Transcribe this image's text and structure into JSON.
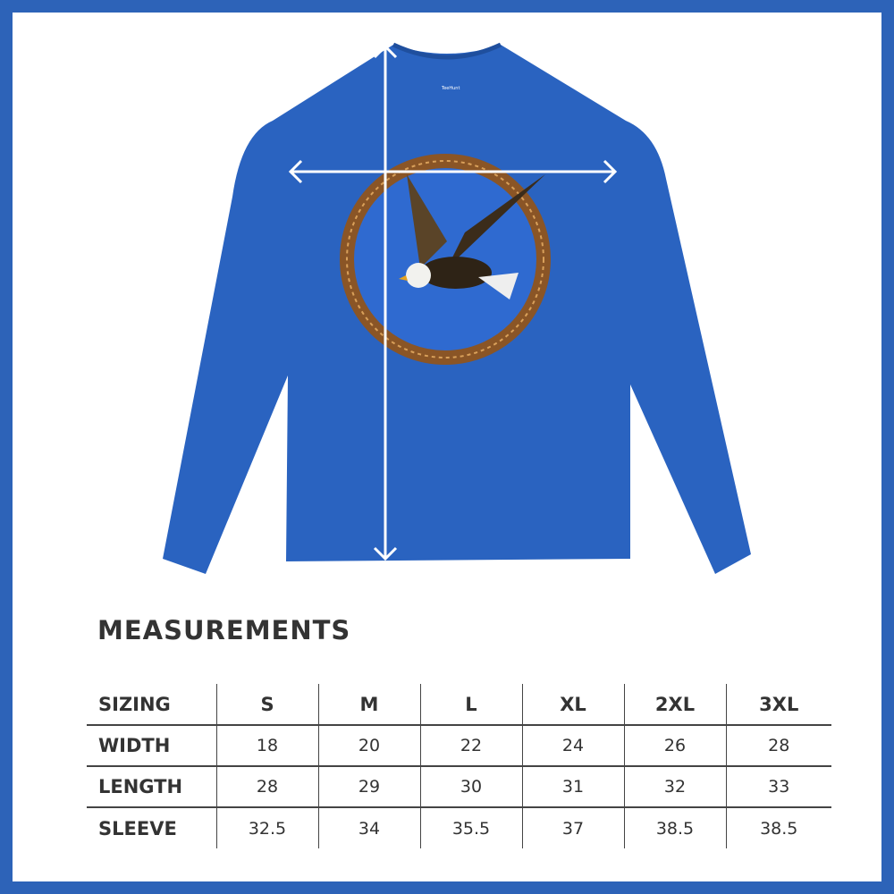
{
  "colors": {
    "frame": "#2d63b8",
    "shirt": "#2a63c0",
    "text": "#333333",
    "ring": "#8a5526"
  },
  "product": {
    "label_brand": "TeeHunt"
  },
  "measurements": {
    "title": "MEASUREMENTS",
    "header": [
      "SIZING",
      "S",
      "M",
      "L",
      "XL",
      "2XL",
      "3XL"
    ],
    "rows": [
      {
        "label": "WIDTH",
        "values": [
          "18",
          "20",
          "22",
          "24",
          "26",
          "28"
        ]
      },
      {
        "label": "LENGTH",
        "values": [
          "28",
          "29",
          "30",
          "31",
          "32",
          "33"
        ]
      },
      {
        "label": "SLEEVE",
        "values": [
          "32.5",
          "34",
          "35.5",
          "37",
          "38.5",
          "38.5"
        ]
      }
    ]
  }
}
